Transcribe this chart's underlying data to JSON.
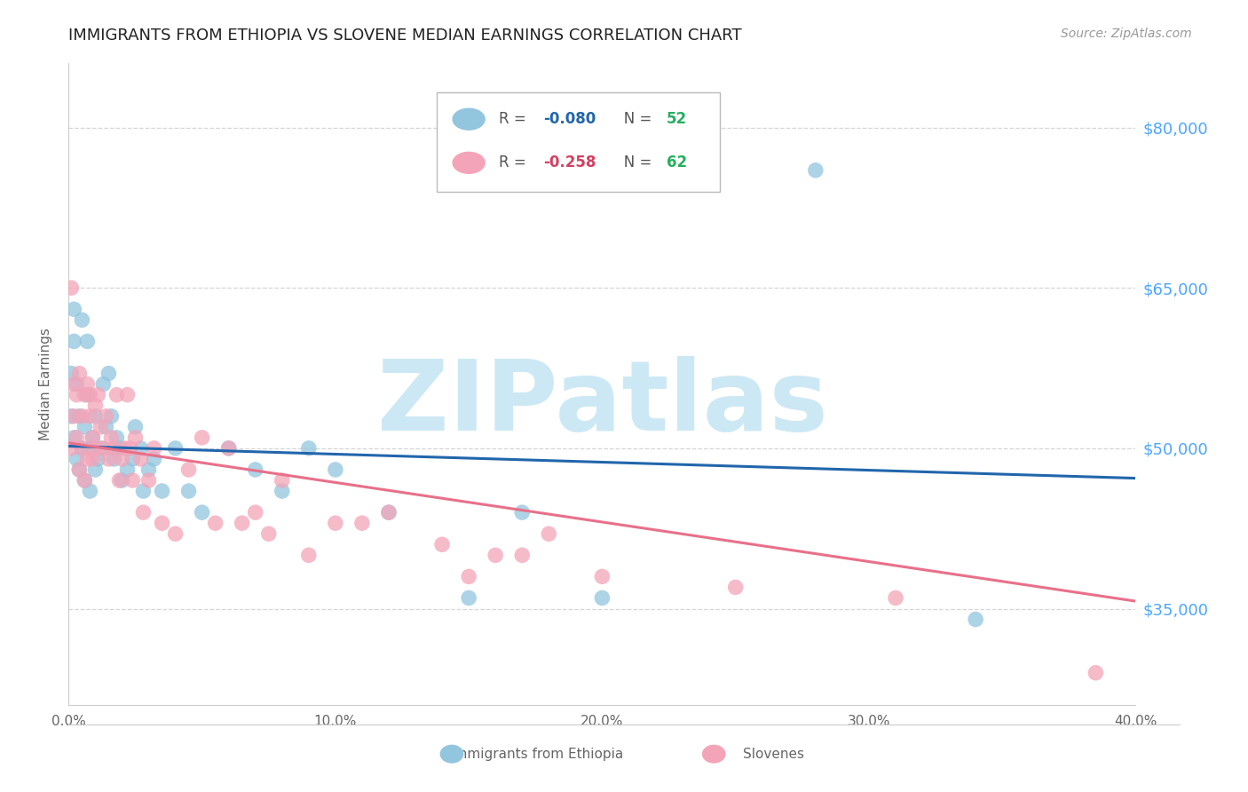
{
  "title": "IMMIGRANTS FROM ETHIOPIA VS SLOVENE MEDIAN EARNINGS CORRELATION CHART",
  "source": "Source: ZipAtlas.com",
  "ylabel": "Median Earnings",
  "yticks": [
    35000,
    50000,
    65000,
    80000
  ],
  "ytick_labels": [
    "$35,000",
    "$50,000",
    "$65,000",
    "$80,000"
  ],
  "xlim": [
    0.0,
    0.4
  ],
  "ylim": [
    26000,
    86000
  ],
  "xtick_labels": [
    "0.0%",
    "10.0%",
    "20.0%",
    "30.0%",
    "40.0%"
  ],
  "xticks": [
    0.0,
    0.1,
    0.2,
    0.3,
    0.4
  ],
  "ethiopia_x": [
    0.001,
    0.001,
    0.002,
    0.002,
    0.002,
    0.003,
    0.003,
    0.004,
    0.004,
    0.005,
    0.005,
    0.006,
    0.006,
    0.007,
    0.007,
    0.008,
    0.008,
    0.009,
    0.01,
    0.01,
    0.011,
    0.012,
    0.013,
    0.014,
    0.015,
    0.016,
    0.017,
    0.018,
    0.019,
    0.02,
    0.022,
    0.024,
    0.025,
    0.027,
    0.028,
    0.03,
    0.032,
    0.035,
    0.04,
    0.045,
    0.05,
    0.06,
    0.07,
    0.08,
    0.09,
    0.1,
    0.12,
    0.15,
    0.17,
    0.2,
    0.28,
    0.34
  ],
  "ethiopia_y": [
    57000,
    53000,
    60000,
    51000,
    63000,
    49000,
    56000,
    48000,
    53000,
    62000,
    50000,
    52000,
    47000,
    55000,
    60000,
    50000,
    46000,
    51000,
    53000,
    48000,
    49000,
    50000,
    56000,
    52000,
    57000,
    53000,
    49000,
    51000,
    50000,
    47000,
    48000,
    49000,
    52000,
    50000,
    46000,
    48000,
    49000,
    46000,
    50000,
    46000,
    44000,
    50000,
    48000,
    46000,
    50000,
    48000,
    44000,
    36000,
    44000,
    36000,
    76000,
    34000
  ],
  "slovene_x": [
    0.001,
    0.001,
    0.002,
    0.002,
    0.003,
    0.003,
    0.004,
    0.004,
    0.005,
    0.005,
    0.006,
    0.006,
    0.007,
    0.007,
    0.008,
    0.008,
    0.009,
    0.009,
    0.01,
    0.01,
    0.011,
    0.012,
    0.013,
    0.014,
    0.015,
    0.016,
    0.017,
    0.018,
    0.019,
    0.02,
    0.021,
    0.022,
    0.023,
    0.024,
    0.025,
    0.027,
    0.028,
    0.03,
    0.032,
    0.035,
    0.04,
    0.045,
    0.05,
    0.055,
    0.06,
    0.065,
    0.07,
    0.075,
    0.08,
    0.09,
    0.1,
    0.11,
    0.12,
    0.14,
    0.15,
    0.16,
    0.17,
    0.18,
    0.2,
    0.25,
    0.31,
    0.385
  ],
  "slovene_y": [
    50000,
    65000,
    53000,
    56000,
    51000,
    55000,
    48000,
    57000,
    50000,
    53000,
    55000,
    47000,
    56000,
    49000,
    55000,
    53000,
    51000,
    49000,
    54000,
    50000,
    55000,
    52000,
    50000,
    53000,
    49000,
    51000,
    50000,
    55000,
    47000,
    49000,
    50000,
    55000,
    50000,
    47000,
    51000,
    49000,
    44000,
    47000,
    50000,
    43000,
    42000,
    48000,
    51000,
    43000,
    50000,
    43000,
    44000,
    42000,
    47000,
    40000,
    43000,
    43000,
    44000,
    41000,
    38000,
    40000,
    40000,
    42000,
    38000,
    37000,
    36000,
    29000
  ],
  "eth_color": "#92c5de",
  "slo_color": "#f4a4b8",
  "eth_line_color": "#2166ac",
  "slo_line_color": "#e8708a",
  "eth_R": "-0.080",
  "eth_N": "52",
  "slo_R": "-0.258",
  "slo_N": "62",
  "eth_R_color": "#2166ac",
  "slo_R_color": "#d44060",
  "N_color": "#27ae60",
  "watermark": "ZIPatlas",
  "watermark_color": "#cde8f5",
  "right_axis_color": "#4da6ff",
  "grid_color": "#d5d5d5",
  "background": "#ffffff",
  "title_fontsize": 13,
  "source_fontsize": 10
}
